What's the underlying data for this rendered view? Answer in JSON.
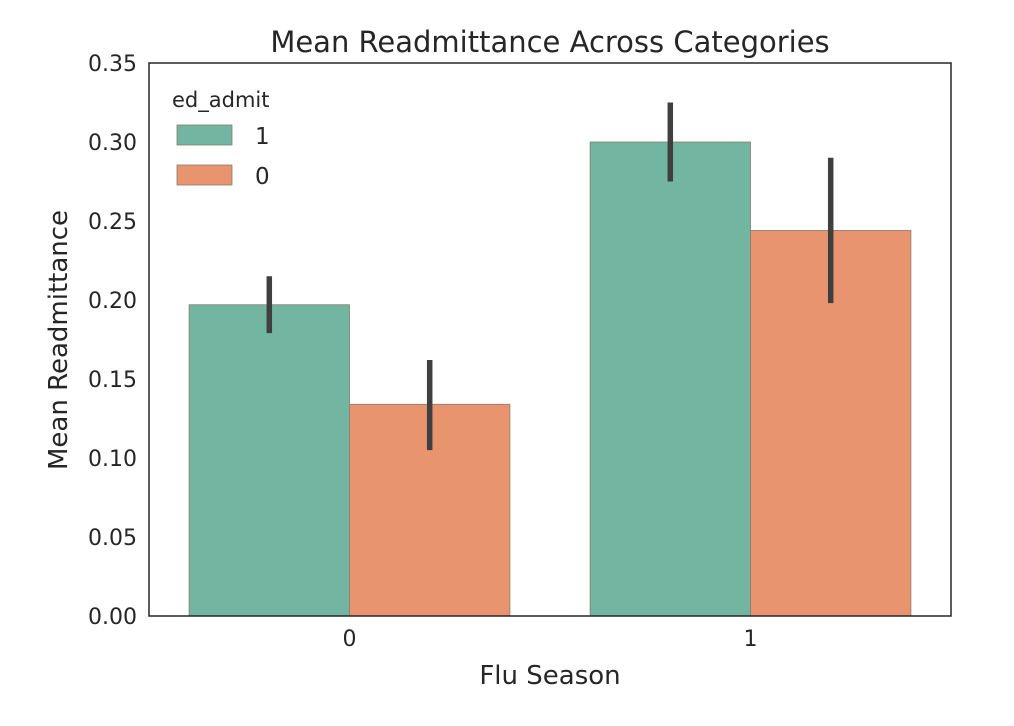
{
  "chart_data": {
    "type": "bar",
    "title": "Mean Readmittance Across Categories",
    "xlabel": "Flu Season",
    "ylabel": "Mean Readmittance",
    "categories": [
      "0",
      "1"
    ],
    "ylim": [
      0,
      0.35
    ],
    "yticks": [
      "0.00",
      "0.05",
      "0.10",
      "0.15",
      "0.20",
      "0.25",
      "0.30",
      "0.35"
    ],
    "grid": false,
    "legend": {
      "title": "ed_admit",
      "placement": "top-left"
    },
    "series": [
      {
        "name": "1",
        "color": "#72b6a1",
        "values": [
          0.197,
          0.3
        ],
        "error_low": [
          0.179,
          0.275
        ],
        "error_high": [
          0.215,
          0.325
        ]
      },
      {
        "name": "0",
        "color": "#e8956f",
        "values": [
          0.134,
          0.244
        ],
        "error_low": [
          0.105,
          0.198
        ],
        "error_high": [
          0.162,
          0.29
        ]
      }
    ],
    "error_bar_color": "#3f3f3f"
  }
}
